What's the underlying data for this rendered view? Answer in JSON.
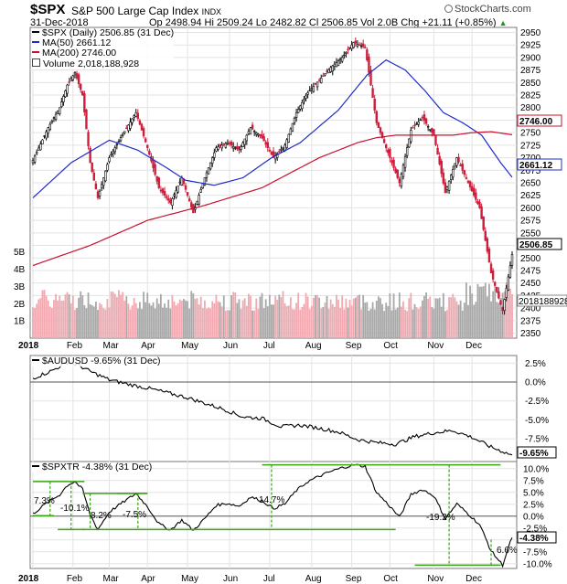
{
  "header": {
    "symbol": "$SPX",
    "name": "S&P 500 Large Cap Index",
    "exchange": "INDX",
    "date": "31-Dec-2018",
    "quote": "Op 2498.94  Hi 2509.24  Lo 2482.82  Cl 2506.85  Vol 2.0B  Chg +21.11 (+0.85%)",
    "chg_arrow": "▲",
    "brand": "StockCharts.com",
    "brand_icon": "magnifier-icon"
  },
  "colors": {
    "ma50": "#1f2cc9",
    "ma200": "#c8102e",
    "up_bar": "#000000",
    "down_bar": "#cc1e3c",
    "volume_up": "#f0a9b1",
    "volume_down": "#a8a8a8",
    "level_line": "#3aa515",
    "grid": "#e3e3e3"
  },
  "legend": {
    "price": "$SPX (Daily) 2506.85 (31 Dec)",
    "ma50": "MA(50) 2661.12",
    "ma200": "MA(200) 2746.00",
    "volume": "Volume 2,018,188,928",
    "aud": "$AUDUSD -9.65% (31 Dec)",
    "tr": "$SPXTR -4.38% (31 Dec)"
  },
  "tags": {
    "ma200": "2746.00",
    "ma50": "2661.12",
    "price": "2506.85",
    "volume": "2018188928",
    "aud": "-9.65%",
    "tr": "-4.38%"
  },
  "chart_data": [
    {
      "type": "line",
      "subtype": "candlestick-price-with-moving-averages",
      "title": "$SPX (Daily) 2506.85 (31 Dec)",
      "x_months": [
        "2018",
        "Feb",
        "Mar",
        "Apr",
        "May",
        "Jun",
        "Jul",
        "Aug",
        "Sep",
        "Oct",
        "Nov",
        "Dec"
      ],
      "ylim": [
        2340,
        2960
      ],
      "yticks": [
        2350,
        2375,
        2400,
        2425,
        2450,
        2475,
        2500,
        2525,
        2550,
        2575,
        2600,
        2625,
        2650,
        2675,
        2700,
        2725,
        2750,
        2775,
        2800,
        2825,
        2850,
        2875,
        2900,
        2925,
        2950
      ],
      "series": [
        {
          "name": "$SPX",
          "x": [
            0,
            8,
            14,
            18,
            22,
            26,
            30,
            34,
            40,
            46,
            54,
            60,
            66,
            72,
            78,
            84,
            90,
            96,
            102,
            108,
            114,
            120,
            126,
            132,
            138,
            144,
            150,
            156,
            162,
            168,
            174,
            180,
            186,
            192,
            198,
            204,
            210,
            216,
            222,
            228,
            234,
            240,
            246,
            251
          ],
          "values": [
            2695,
            2760,
            2800,
            2845,
            2870,
            2825,
            2690,
            2620,
            2700,
            2740,
            2790,
            2720,
            2640,
            2610,
            2660,
            2590,
            2660,
            2720,
            2730,
            2715,
            2760,
            2740,
            2700,
            2725,
            2790,
            2830,
            2855,
            2880,
            2900,
            2930,
            2920,
            2770,
            2710,
            2650,
            2755,
            2780,
            2745,
            2630,
            2700,
            2650,
            2600,
            2470,
            2395,
            2506.85
          ]
        },
        {
          "name": "MA(50)",
          "x": [
            0,
            20,
            40,
            55,
            70,
            80,
            95,
            110,
            125,
            140,
            160,
            175,
            185,
            195,
            205,
            215,
            225,
            235,
            245,
            251
          ],
          "values": [
            2620,
            2690,
            2735,
            2715,
            2680,
            2655,
            2645,
            2660,
            2700,
            2730,
            2795,
            2865,
            2895,
            2875,
            2835,
            2790,
            2770,
            2745,
            2690,
            2661.12
          ]
        },
        {
          "name": "MA(200)",
          "x": [
            0,
            30,
            60,
            90,
            120,
            150,
            170,
            180,
            190,
            200,
            210,
            220,
            230,
            240,
            251
          ],
          "values": [
            2485,
            2525,
            2575,
            2605,
            2640,
            2700,
            2730,
            2740,
            2745,
            2745,
            2745,
            2745,
            2750,
            2752,
            2746
          ]
        }
      ]
    },
    {
      "type": "bar",
      "title": "Volume 2,018,188,928",
      "y_labels": [
        "1B",
        "2B",
        "3B",
        "4B",
        "5B"
      ],
      "ylim": [
        0,
        5.3
      ],
      "series": [
        {
          "name": "Volume",
          "x": [
            0,
            251
          ],
          "values": [
            2.2,
            2.02
          ]
        }
      ]
    },
    {
      "type": "line",
      "title": "$AUDUSD -9.65% (31 Dec)",
      "x_months": [
        "2018",
        "Feb",
        "Mar",
        "Apr",
        "May",
        "Jun",
        "Jul",
        "Aug",
        "Sep",
        "Oct",
        "Nov",
        "Dec"
      ],
      "ylim": [
        -10.5,
        3.5
      ],
      "yticks": [
        2.5,
        0.0,
        -2.5,
        -5.0,
        -7.5
      ],
      "series": [
        {
          "name": "$AUDUSD",
          "x": [
            0,
            10,
            18,
            24,
            30,
            40,
            50,
            60,
            70,
            80,
            90,
            100,
            110,
            120,
            130,
            140,
            150,
            160,
            170,
            180,
            190,
            200,
            210,
            220,
            230,
            240,
            251
          ],
          "values": [
            0.5,
            1.5,
            2.6,
            2.2,
            1.4,
            0.3,
            -0.3,
            -0.8,
            -1.4,
            -2.0,
            -2.8,
            -3.6,
            -4.6,
            -4.8,
            -5.9,
            -5.7,
            -6.1,
            -6.6,
            -7.6,
            -8.0,
            -8.2,
            -7.2,
            -6.7,
            -6.4,
            -7.3,
            -8.6,
            -9.65
          ]
        }
      ]
    },
    {
      "type": "line",
      "title": "$SPXTR -4.38% (31 Dec)",
      "x_months": [
        "2018",
        "Feb",
        "Mar",
        "Apr",
        "May",
        "Jun",
        "Jul",
        "Aug",
        "Sep",
        "Oct",
        "Nov",
        "Dec"
      ],
      "ylim": [
        -11,
        11.5
      ],
      "yticks": [
        10.0,
        7.5,
        5.0,
        2.5,
        0.0,
        -2.5,
        -5.0,
        -7.5,
        -10.0
      ],
      "series": [
        {
          "name": "$SPXTR",
          "x": [
            0,
            8,
            14,
            18,
            22,
            26,
            30,
            34,
            40,
            46,
            54,
            60,
            66,
            72,
            78,
            84,
            90,
            96,
            102,
            108,
            114,
            120,
            126,
            132,
            138,
            144,
            150,
            156,
            162,
            168,
            174,
            180,
            186,
            192,
            198,
            204,
            210,
            216,
            222,
            228,
            234,
            240,
            246,
            251
          ],
          "values": [
            0.5,
            3,
            4.5,
            6.5,
            7.3,
            5.6,
            0.3,
            -2.8,
            0.9,
            2.6,
            4.8,
            2.0,
            -1.6,
            -2.9,
            -0.8,
            -3.0,
            -0.5,
            2.3,
            2.7,
            2.1,
            4.0,
            3.3,
            1.6,
            2.6,
            5.4,
            7.3,
            8.4,
            9.4,
            10.2,
            10.8,
            10.5,
            5.0,
            2.5,
            -0.2,
            4.6,
            5.6,
            4.3,
            -0.5,
            2.6,
            0.5,
            -1.8,
            -7.3,
            -10.3,
            -4.38
          ]
        }
      ],
      "annotations": [
        "7.3%",
        "-10.1%",
        "8.2%",
        "-7.5%",
        "14.7%",
        "-19.2%",
        "6.6%"
      ]
    }
  ]
}
